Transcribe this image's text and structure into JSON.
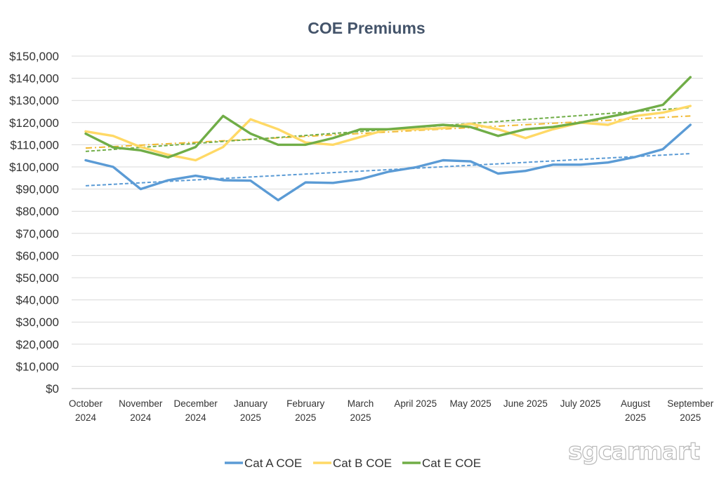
{
  "chart_data": {
    "type": "line",
    "title": "COE Premiums",
    "xlabel": "",
    "ylabel": "",
    "ylim": [
      0,
      150000
    ],
    "ytick_step": 10000,
    "y_tick_labels": [
      "$0",
      "$10,000",
      "$20,000",
      "$30,000",
      "$40,000",
      "$50,000",
      "$60,000",
      "$70,000",
      "$80,000",
      "$90,000",
      "$100,000",
      "$110,000",
      "$120,000",
      "$130,000",
      "$140,000",
      "$150,000"
    ],
    "grid": true,
    "legend_position": "bottom",
    "x_labels": [
      [
        "October",
        "2024"
      ],
      [
        "November",
        "2024"
      ],
      [
        "December",
        "2024"
      ],
      [
        "January",
        "2025"
      ],
      [
        "February",
        "2025"
      ],
      [
        "March",
        "2025"
      ],
      [
        "April 2025"
      ],
      [
        "May 2025"
      ],
      [
        "June 2025"
      ],
      [
        "July 2025"
      ],
      [
        "August",
        "2025"
      ],
      [
        "September",
        "2025"
      ]
    ],
    "points_per_month": 2,
    "series": [
      {
        "name": "Cat A COE",
        "color": "#5b9bd5",
        "values": [
          103000,
          100000,
          90000,
          94000,
          96000,
          94000,
          93800,
          85000,
          93000,
          92800,
          94500,
          97800,
          99800,
          103000,
          102500,
          97000,
          98200,
          101000,
          101000,
          102000,
          104500,
          108000,
          119000
        ],
        "trendline": {
          "start": 91500,
          "end": 106000,
          "style": "dashed"
        }
      },
      {
        "name": "Cat B COE",
        "color": "#ffd966",
        "values": [
          116000,
          114000,
          109000,
          105500,
          103000,
          109000,
          121500,
          117000,
          111000,
          110000,
          113500,
          117000,
          117000,
          117500,
          119500,
          117000,
          113000,
          117000,
          120000,
          119000,
          123000,
          124500,
          127500
        ],
        "trendline": {
          "start": 108500,
          "end": 123000,
          "style": "dashdot",
          "color": "#f0b830"
        }
      },
      {
        "name": "Cat E COE",
        "color": "#70ad47",
        "values": [
          115000,
          108800,
          107500,
          104300,
          109000,
          123000,
          115000,
          110000,
          110000,
          113000,
          117000,
          117000,
          118000,
          119000,
          118000,
          114000,
          117000,
          118000,
          120000,
          122500,
          125000,
          128000,
          140500
        ],
        "trendline": {
          "start": 107000,
          "end": 126800,
          "style": "dashed"
        }
      }
    ]
  },
  "watermark": {
    "text": "sgcarmart"
  }
}
